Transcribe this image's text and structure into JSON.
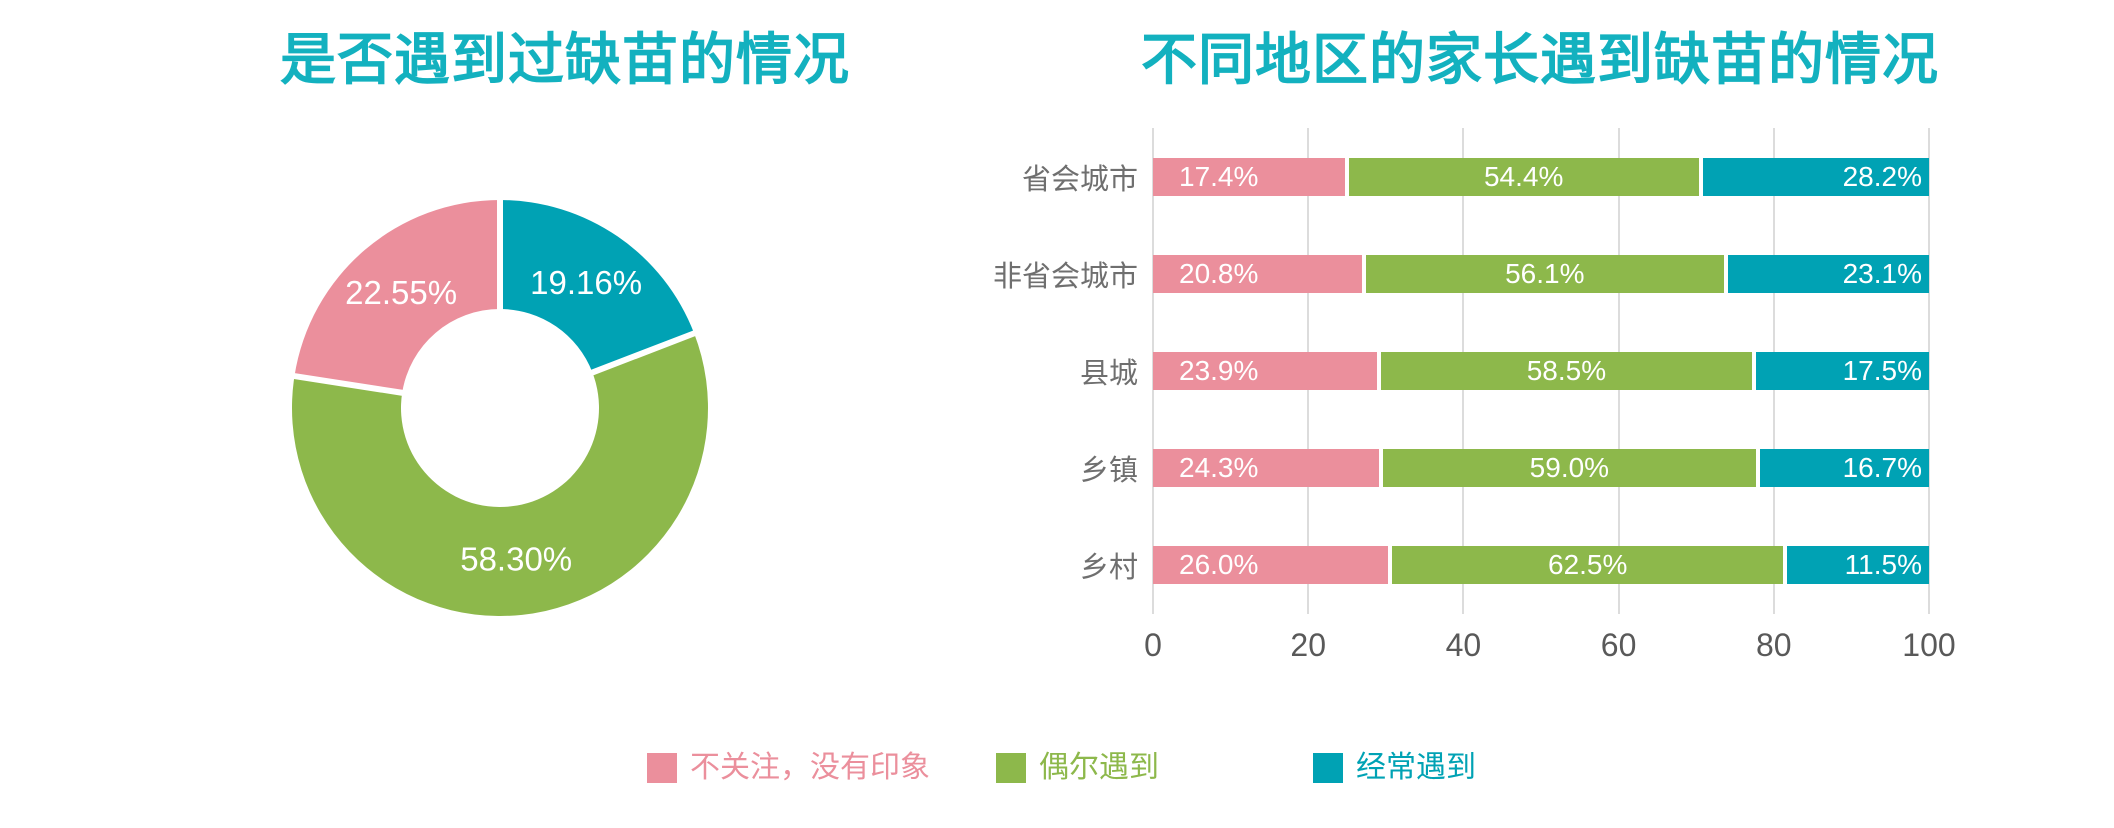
{
  "page": {
    "background": "#FFFFFF"
  },
  "chart_data": [
    {
      "type": "pie",
      "variant": "donut",
      "title": "是否遇到过缺苗的情况",
      "title_color": "#13B1BF",
      "start_angle": "top-clockwise",
      "inner_radius_ratio": 0.48,
      "label_color": "#FFFFFF",
      "separator_color": "#FFFFFF",
      "slices": [
        {
          "name": "经常遇到",
          "value": 19.16,
          "label": "19.16%",
          "color": "#00A2B4"
        },
        {
          "name": "偶尔遇到",
          "value": 58.3,
          "label": "58.30%",
          "color": "#8DB84B"
        },
        {
          "name": "不关注，没有印象",
          "value": 22.55,
          "label": "22.55%",
          "color": "#EB8F9C"
        }
      ]
    },
    {
      "type": "bar",
      "variant": "horizontal-stacked",
      "title": "不同地区的家长遇到缺苗的情况",
      "title_color": "#13B1BF",
      "categories": [
        "省会城市",
        "非省会城市",
        "县城",
        "乡镇",
        "乡村"
      ],
      "category_label_color": "#6F6F6F",
      "value_label_color": "#FFFFFF",
      "series": [
        {
          "name": "不关注，没有印象",
          "color": "#EB8F9C",
          "label_align": "left",
          "values": [
            17.4,
            20.8,
            23.9,
            24.3,
            26.0
          ],
          "labels": [
            "17.4%",
            "20.8%",
            "23.9%",
            "24.3%",
            "26.0%"
          ]
        },
        {
          "name": "偶尔遇到",
          "color": "#8DB84B",
          "label_align": "center",
          "values": [
            54.4,
            56.1,
            58.5,
            59.0,
            62.5
          ],
          "labels": [
            "54.4%",
            "56.1%",
            "58.5%",
            "59.0%",
            "62.5%"
          ]
        },
        {
          "name": "经常遇到",
          "color": "#00A2B4",
          "label_align": "right",
          "values": [
            28.2,
            23.1,
            17.5,
            16.7,
            11.5
          ],
          "labels": [
            "28.2%",
            "23.1%",
            "17.5%",
            "16.7%",
            "11.5%"
          ]
        }
      ],
      "x_axis": {
        "min": 0,
        "max": 100,
        "ticks": [
          "0",
          "20",
          "40",
          "60",
          "80",
          "100"
        ],
        "tick_color": "#595959",
        "gridline_color": "#DCDCDC",
        "grid": true
      },
      "legend_position": "bottom"
    }
  ],
  "legend": {
    "items": [
      {
        "label": "不关注，没有印象",
        "color": "#EB8F9C"
      },
      {
        "label": "偶尔遇到",
        "color": "#8DB84B"
      },
      {
        "label": "经常遇到",
        "color": "#00A2B4"
      }
    ]
  }
}
